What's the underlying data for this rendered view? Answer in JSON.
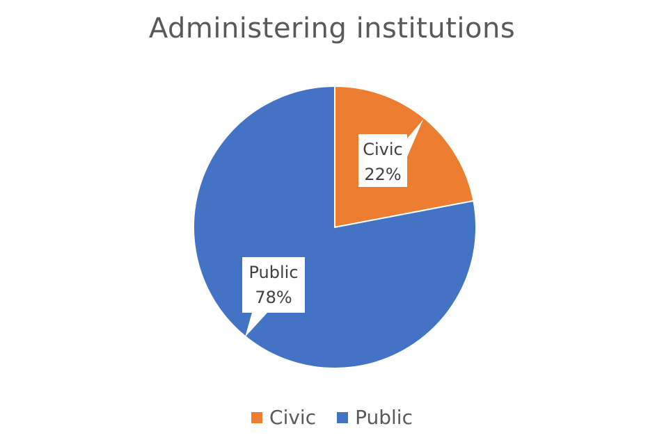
{
  "chart_data": {
    "type": "pie",
    "title": "Administering institutions",
    "slices": [
      {
        "name": "Civic",
        "value": 22,
        "label": "22%",
        "color": "#ED7D31"
      },
      {
        "name": "Public",
        "value": 78,
        "label": "78%",
        "color": "#4472C4"
      }
    ],
    "start_angle_deg": 0,
    "direction": "clockwise",
    "legend_position": "bottom",
    "data_labels": "callout"
  }
}
